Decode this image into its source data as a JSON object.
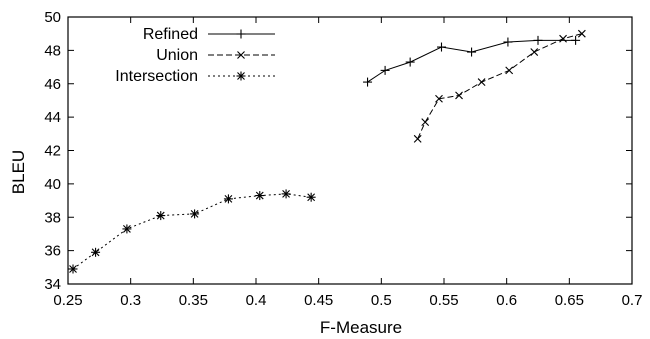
{
  "chart_data": {
    "type": "line",
    "title": "",
    "xlabel": "F-Measure",
    "ylabel": "BLEU",
    "xlim": [
      0.25,
      0.7
    ],
    "ylim": [
      34,
      50
    ],
    "x_ticks": [
      0.25,
      0.3,
      0.35,
      0.4,
      0.45,
      0.5,
      0.55,
      0.6,
      0.65,
      0.7
    ],
    "x_tick_labels": [
      "0.25",
      "0.3",
      "0.35",
      "0.4",
      "0.45",
      "0.5",
      "0.55",
      "0.6",
      "0.65",
      "0.7"
    ],
    "y_ticks": [
      34,
      36,
      38,
      40,
      42,
      44,
      46,
      48,
      50
    ],
    "y_tick_labels": [
      "34",
      "36",
      "38",
      "40",
      "42",
      "44",
      "46",
      "48",
      "50"
    ],
    "grid": false,
    "legend_position": "top-left",
    "series": [
      {
        "name": "Refined",
        "line_style": "solid",
        "marker": "plus",
        "x": [
          0.489,
          0.503,
          0.523,
          0.548,
          0.572,
          0.601,
          0.625,
          0.655
        ],
        "y": [
          46.1,
          46.8,
          47.3,
          48.2,
          47.9,
          48.5,
          48.6,
          48.6
        ]
      },
      {
        "name": "Union",
        "line_style": "dashed",
        "marker": "x",
        "x": [
          0.529,
          0.535,
          0.546,
          0.562,
          0.58,
          0.602,
          0.622,
          0.645,
          0.66
        ],
        "y": [
          42.7,
          43.7,
          45.1,
          45.3,
          46.1,
          46.8,
          47.9,
          48.7,
          49.0
        ]
      },
      {
        "name": "Intersection",
        "line_style": "dotted",
        "marker": "star",
        "x": [
          0.254,
          0.272,
          0.297,
          0.324,
          0.351,
          0.378,
          0.403,
          0.424,
          0.444
        ],
        "y": [
          34.9,
          35.9,
          37.3,
          38.1,
          38.2,
          39.1,
          39.3,
          39.4,
          39.2
        ]
      }
    ]
  }
}
